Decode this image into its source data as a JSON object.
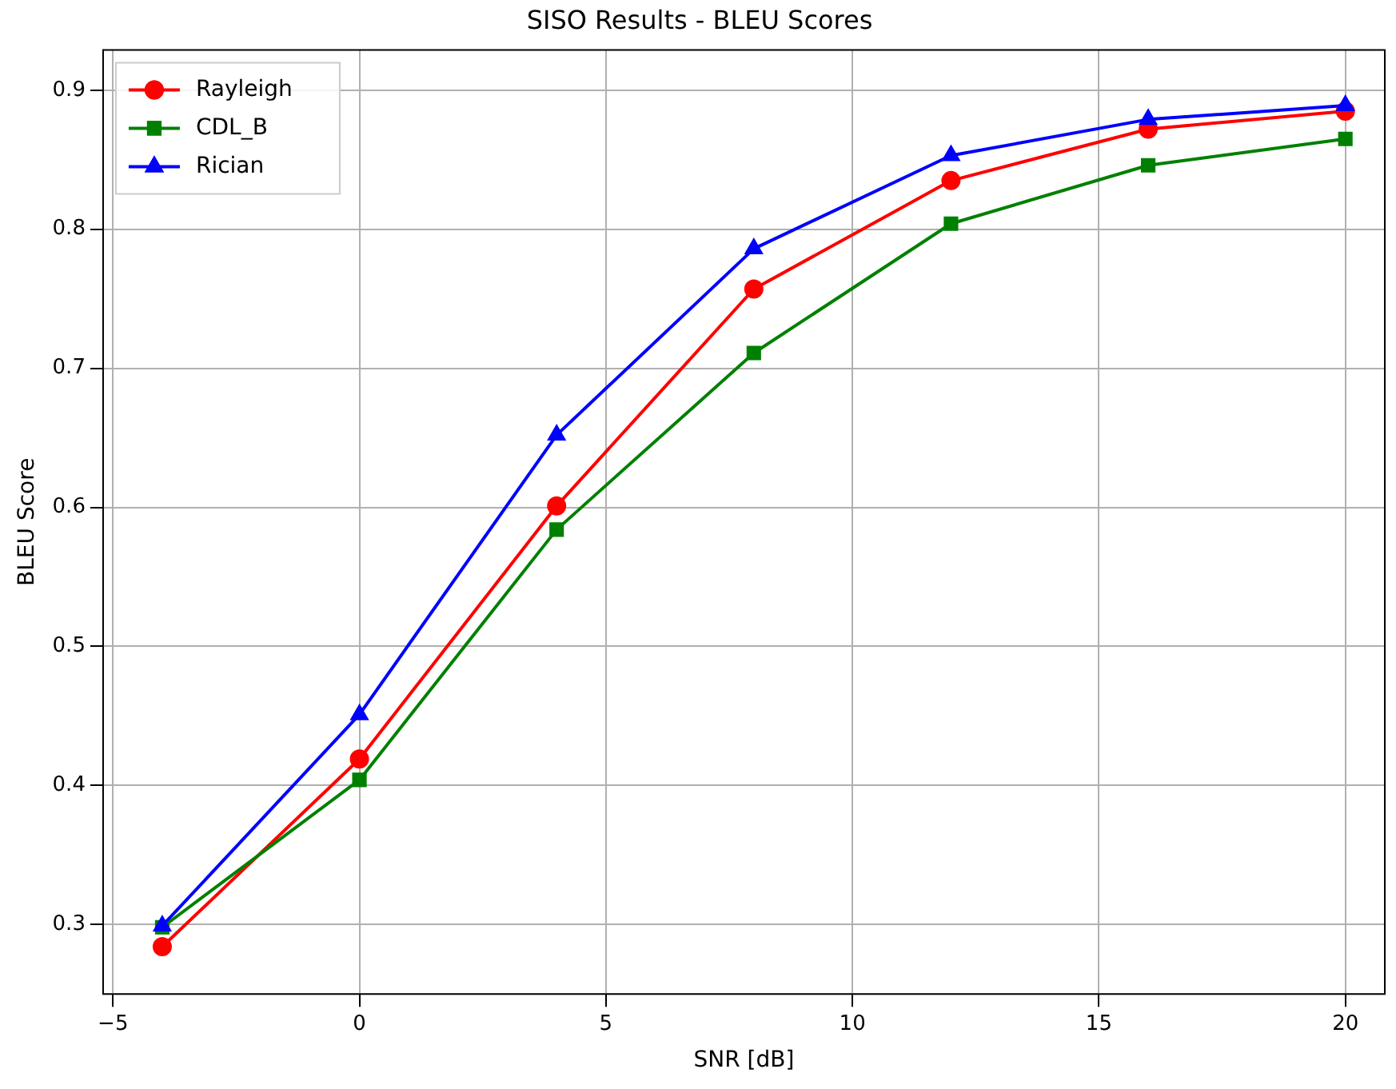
{
  "chart_data": {
    "type": "line",
    "title": "SISO Results - BLEU Scores",
    "xlabel": "SNR [dB]",
    "ylabel": "BLEU Score",
    "x": [
      -4,
      0,
      4,
      8,
      12,
      16,
      20
    ],
    "series": [
      {
        "name": "Rayleigh",
        "color": "#ff0000",
        "marker": "circle",
        "values": [
          0.284,
          0.419,
          0.601,
          0.757,
          0.835,
          0.872,
          0.885
        ]
      },
      {
        "name": "CDL_B",
        "color": "#008000",
        "marker": "square",
        "values": [
          0.298,
          0.404,
          0.584,
          0.711,
          0.804,
          0.846,
          0.865
        ]
      },
      {
        "name": "Rician",
        "color": "#0000ff",
        "marker": "triangle",
        "values": [
          0.299,
          0.451,
          0.652,
          0.786,
          0.853,
          0.879,
          0.889
        ]
      }
    ],
    "xlim": [
      -5.2,
      20.8
    ],
    "xticks": [
      {
        "value": -5,
        "label": "−5"
      },
      0,
      5,
      10,
      15,
      20
    ],
    "ylim": [
      0.25,
      0.929
    ],
    "yticks": [
      0.3,
      0.4,
      0.5,
      0.6,
      0.7,
      0.8,
      0.9
    ],
    "grid": true,
    "legend": "top left",
    "line_style": "solid"
  }
}
